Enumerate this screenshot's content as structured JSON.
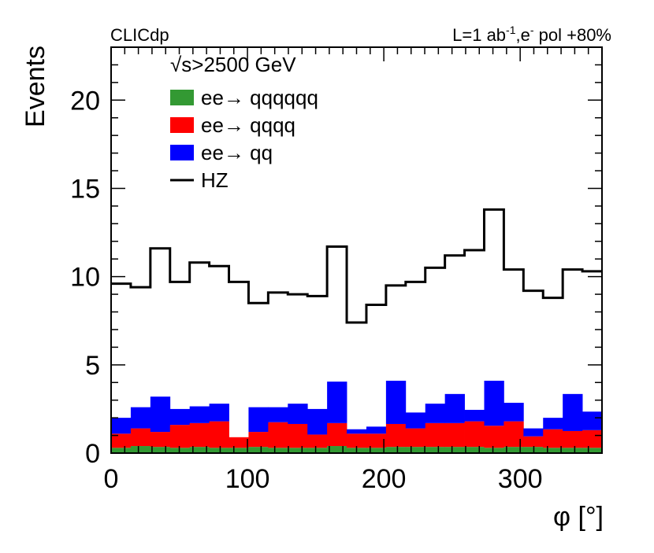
{
  "chart_data": {
    "type": "bar",
    "stacked": true,
    "bins": 25,
    "xlim": [
      0,
      360
    ],
    "ylim": [
      0,
      23
    ],
    "xlabel": "φ [°]",
    "ylabel": "Events",
    "xticks": [
      0,
      100,
      200,
      300
    ],
    "yticks": [
      0,
      5,
      10,
      15,
      20
    ],
    "header_left": "CLICdp",
    "header_right": {
      "lumi": "L=1 ab",
      "lumi_sup": "-1",
      "beam": ",e",
      "beam_sup": "-",
      "pol": " pol +80%"
    },
    "legend": {
      "title": "√s>2500 GeV",
      "position": "top-left",
      "entries": [
        {
          "label": "ee→ qqqqqq",
          "color": "#339933",
          "style": "fill"
        },
        {
          "label": "ee→ qqqq",
          "color": "#ff0000",
          "style": "fill"
        },
        {
          "label": "ee→ qq",
          "color": "#0000ff",
          "style": "fill"
        },
        {
          "label": "HZ",
          "color": "#000000",
          "style": "line"
        }
      ]
    },
    "series": [
      {
        "name": "ee→ qqqqqq",
        "color": "#339933",
        "values": [
          0.3,
          0.4,
          0.35,
          0.3,
          0.35,
          0.3,
          0.3,
          0.35,
          0.3,
          0.3,
          0.3,
          0.4,
          0.3,
          0.3,
          0.35,
          0.35,
          0.35,
          0.35,
          0.35,
          0.3,
          0.35,
          0.35,
          0.3,
          0.3,
          0.3
        ]
      },
      {
        "name": "ee→ qqqq",
        "color": "#ff0000",
        "values": [
          0.8,
          1.0,
          0.85,
          1.3,
          1.35,
          1.5,
          0.6,
          0.85,
          1.45,
          1.35,
          0.75,
          1.3,
          0.8,
          0.8,
          1.3,
          1.05,
          1.35,
          1.35,
          1.45,
          1.25,
          1.45,
          0.6,
          1.05,
          0.95,
          1.0
        ]
      },
      {
        "name": "ee→ qq",
        "color": "#0000ff",
        "values": [
          0.9,
          1.2,
          2.0,
          0.9,
          0.95,
          1.0,
          0.0,
          1.4,
          0.85,
          1.15,
          1.45,
          2.35,
          0.25,
          0.4,
          2.45,
          0.9,
          1.1,
          1.65,
          0.65,
          2.55,
          1.05,
          0.45,
          0.65,
          2.1,
          1.05
        ]
      },
      {
        "name": "HZ",
        "color": "#000000",
        "style": "step",
        "values": [
          9.6,
          9.4,
          11.6,
          9.7,
          10.8,
          10.6,
          9.7,
          8.5,
          9.1,
          9.0,
          8.9,
          11.7,
          7.4,
          8.4,
          9.5,
          9.7,
          10.5,
          11.2,
          11.5,
          13.8,
          10.4,
          9.2,
          8.8,
          10.4,
          10.3
        ]
      }
    ]
  }
}
